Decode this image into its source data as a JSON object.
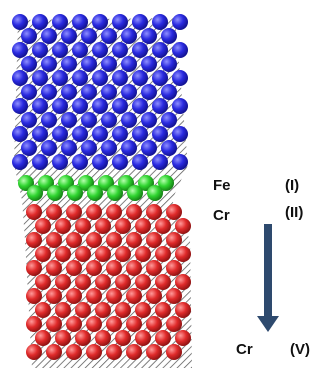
{
  "labels": [
    {
      "element": "Fe",
      "layer": "(I)"
    },
    {
      "element": "Cr",
      "layer": "(II)"
    },
    {
      "element": "Cr",
      "layer": "(V)"
    }
  ]
}
